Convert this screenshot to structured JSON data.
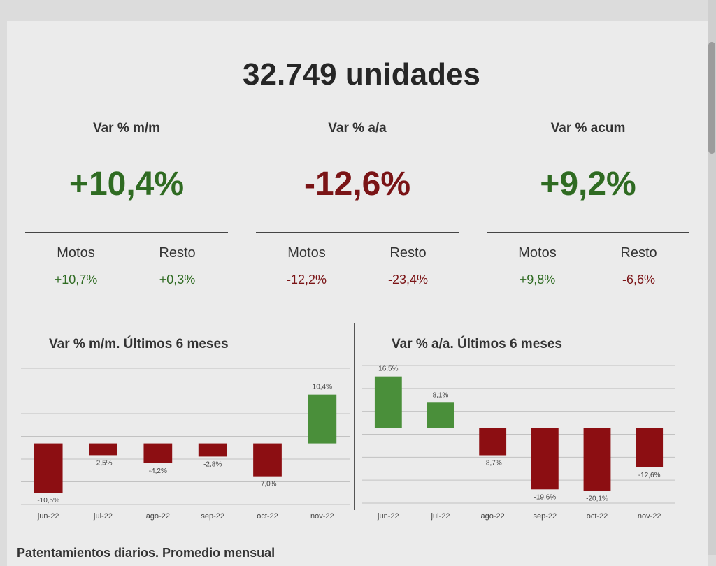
{
  "headline": "32.749 unidades",
  "kpis": [
    {
      "label": "Var % m/m",
      "value": "+10,4%",
      "value_color": "#2f6b22",
      "sub": [
        {
          "label": "Motos",
          "value": "+10,7%",
          "color": "#2f6b22"
        },
        {
          "label": "Resto",
          "value": "+0,3%",
          "color": "#2f6b22"
        }
      ]
    },
    {
      "label": "Var % a/a",
      "value": "-12,6%",
      "value_color": "#7a1416",
      "sub": [
        {
          "label": "Motos",
          "value": "-12,2%",
          "color": "#7a1416"
        },
        {
          "label": "Resto",
          "value": "-23,4%",
          "color": "#7a1416"
        }
      ]
    },
    {
      "label": "Var % acum",
      "value": "+9,2%",
      "value_color": "#2f6b22",
      "sub": [
        {
          "label": "Motos",
          "value": "+9,8%",
          "color": "#2f6b22"
        },
        {
          "label": "Resto",
          "value": "-6,6%",
          "color": "#7a1416"
        }
      ]
    }
  ],
  "chart_data": [
    {
      "type": "bar",
      "title": "Var % m/m. Últimos 6 meses",
      "categories": [
        "jun-22",
        "jul-22",
        "ago-22",
        "sep-22",
        "oct-22",
        "nov-22"
      ],
      "values": [
        -10.5,
        -2.5,
        -4.2,
        -2.8,
        -7.0,
        10.4
      ],
      "labels": [
        "-10,5%",
        "-2,5%",
        "-4,2%",
        "-2,8%",
        "-7,0%",
        "10,4%"
      ],
      "ylim": [
        -13,
        16
      ],
      "grid": true,
      "colors": {
        "positive": "#4a8f3a",
        "negative": "#8c0e12"
      }
    },
    {
      "type": "bar",
      "title": "Var % a/a. Últimos 6 meses",
      "categories": [
        "jun-22",
        "jul-22",
        "ago-22",
        "sep-22",
        "oct-22",
        "nov-22"
      ],
      "values": [
        16.5,
        8.1,
        -8.7,
        -19.6,
        -20.1,
        -12.6
      ],
      "labels": [
        "16,5%",
        "8,1%",
        "-8,7%",
        "-19,6%",
        "-20,1%",
        "-12,6%"
      ],
      "ylim": [
        -24,
        20
      ],
      "grid": true,
      "colors": {
        "positive": "#4a8f3a",
        "negative": "#8c0e12"
      }
    }
  ],
  "footer_text": "Patentamientos diarios. Promedio mensual"
}
